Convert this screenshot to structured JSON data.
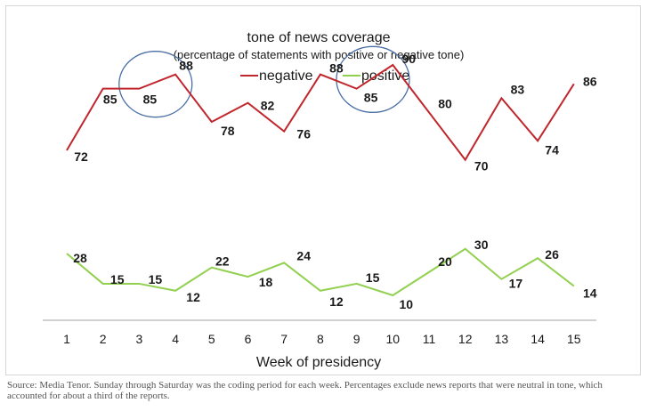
{
  "chart_data": {
    "type": "line",
    "title": "tone of news coverage",
    "subtitle": "(percentage of statements with positive or negative tone)",
    "xlabel": "Week of presidency",
    "x": [
      1,
      2,
      3,
      4,
      5,
      6,
      7,
      8,
      9,
      10,
      11,
      12,
      13,
      14,
      15
    ],
    "series": [
      {
        "name": "negative",
        "color": "#c0272d",
        "values": [
          72,
          85,
          85,
          88,
          78,
          82,
          76,
          88,
          85,
          90,
          80,
          70,
          83,
          74,
          86
        ]
      },
      {
        "name": "positive",
        "color": "#92d050",
        "values": [
          28,
          15,
          15,
          12,
          22,
          18,
          24,
          12,
          15,
          10,
          20,
          30,
          17,
          26,
          14
        ]
      }
    ],
    "legend": "top-center",
    "grid": false,
    "annotations": [
      {
        "type": "circle",
        "around_weeks": [
          3,
          4
        ],
        "series": "negative",
        "color": "#4a6fa5"
      },
      {
        "type": "circle",
        "around_weeks": [
          9,
          10
        ],
        "series": "negative",
        "color": "#4a6fa5"
      }
    ]
  },
  "caption": "Source: Media Tenor. Sunday through Saturday was the coding period for each week. Percentages exclude news reports that were neutral in tone, which accounted for about a third of the reports."
}
